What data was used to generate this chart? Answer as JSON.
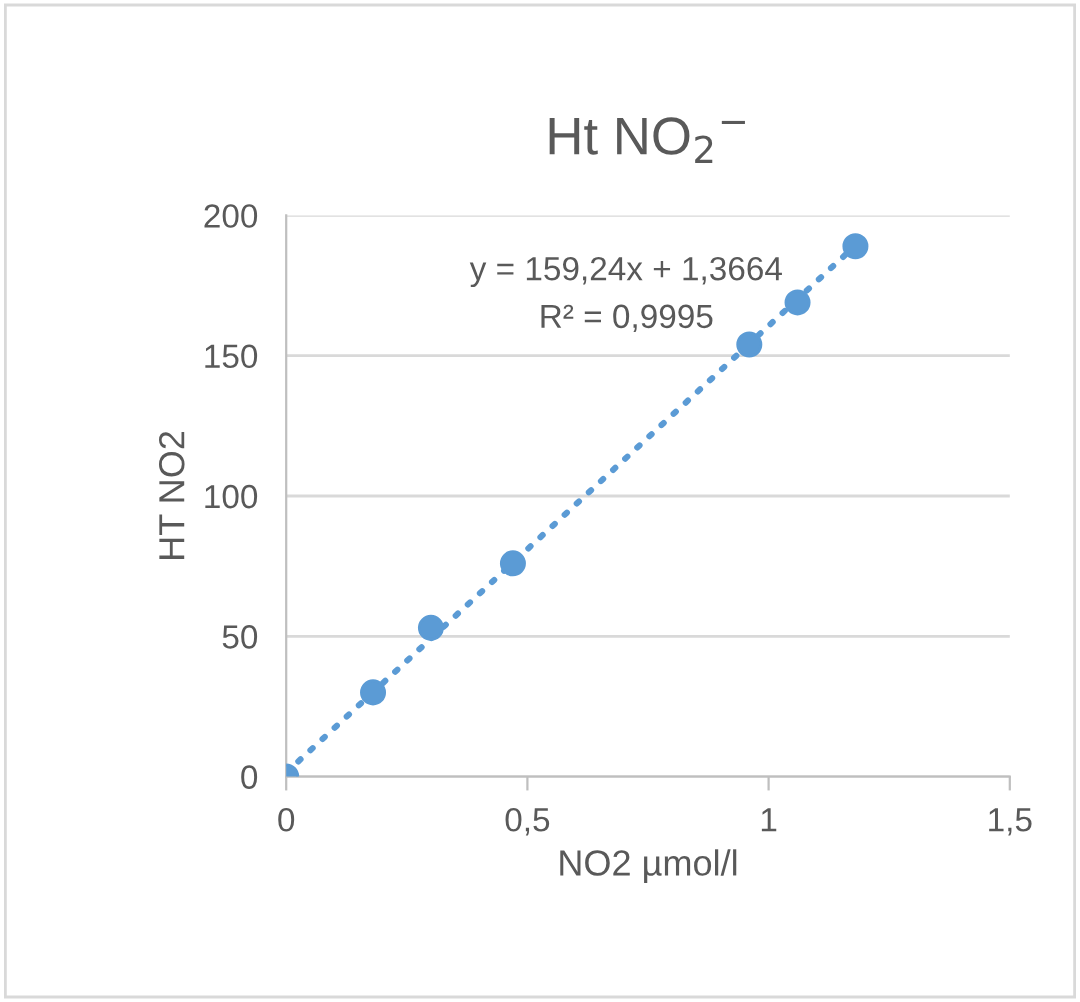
{
  "chart_data": {
    "type": "scatter",
    "title": "Ht NO$_{2}$$^{−}$",
    "xlabel": "NO2 µmol/l",
    "ylabel": "HT NO2",
    "xlim": [
      0,
      1.5
    ],
    "xticks": [
      {
        "value": 0,
        "label": "0"
      },
      {
        "value": 0.5,
        "label": "0,5"
      },
      {
        "value": 1,
        "label": "1"
      },
      {
        "value": 1.5,
        "label": "1,5"
      }
    ],
    "ylim": [
      0,
      200
    ],
    "yticks": [
      0,
      50,
      100,
      150,
      200
    ],
    "grid": "y",
    "marker": "circle",
    "series": [
      {
        "color": "#5b9bd5",
        "x": [
          0,
          0.18,
          0.3,
          0.47,
          0.96,
          1.06,
          1.18
        ],
        "values": [
          0,
          30,
          53,
          76,
          154,
          169,
          189
        ]
      },
      {
        "type": "line",
        "color": "#5b9bd5",
        "line_style": "dotted",
        "marker": "none",
        "x": [
          0,
          1.18
        ],
        "values": [
          1.4,
          189.3
        ]
      }
    ],
    "annotations": [
      "y = 159,24x + 1,3664",
      "R² = 0,9995"
    ]
  }
}
